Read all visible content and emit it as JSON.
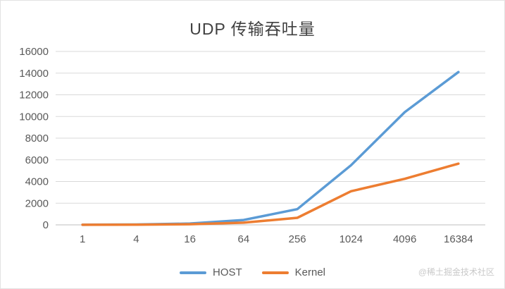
{
  "watermark": "@稀土掘金技术社区",
  "chart_data": {
    "type": "line",
    "title": "UDP 传输吞吐量",
    "xlabel": "",
    "ylabel": "",
    "categories": [
      "1",
      "4",
      "16",
      "64",
      "256",
      "1024",
      "4096",
      "16384"
    ],
    "series": [
      {
        "name": "HOST",
        "color": "#5b9bd5",
        "values": [
          10,
          30,
          120,
          450,
          1450,
          5500,
          10400,
          14100
        ]
      },
      {
        "name": "Kernel",
        "color": "#ed7d31",
        "values": [
          5,
          15,
          60,
          200,
          650,
          3100,
          4250,
          5650
        ]
      }
    ],
    "ylim": [
      0,
      16000
    ],
    "ytick_step": 2000,
    "grid": true,
    "legend_position": "bottom",
    "colors": {
      "grid": "#d9d9d9",
      "axis": "#bfbfbf",
      "tick": "#595959",
      "title": "#404040"
    }
  }
}
